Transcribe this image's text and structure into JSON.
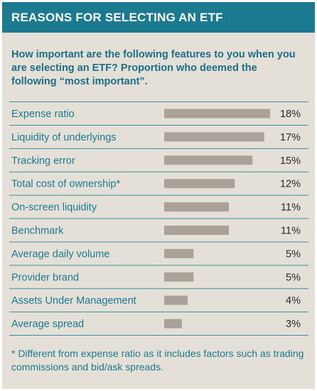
{
  "header": {
    "title": "REASONS FOR SELECTING AN ETF"
  },
  "question": "How important are the following features to you when you are selecting an ETF? Proportion who deemed the following “most important”.",
  "footnote": "* Different from expense ratio as it includes factors such as trading commissions and bid/ask spreads.",
  "colors": {
    "panel_background": "#e4e0d7",
    "header_background": "#1b7a8f",
    "bar": "#aaa199",
    "divider": "#3d8fa1",
    "label": "#1b7a8f"
  },
  "chart_data": {
    "type": "bar",
    "orientation": "horizontal",
    "title": "",
    "xlabel": "",
    "ylabel": "",
    "unit": "%",
    "xlim": [
      0,
      18
    ],
    "grid": false,
    "categories": [
      "Expense ratio",
      "Liquidity of underlyings",
      "Tracking error",
      "Total cost of ownership*",
      "On-screen liquidity",
      "Benchmark",
      "Average daily volume",
      "Provider brand",
      "Assets Under Management",
      "Average spread"
    ],
    "values": [
      18,
      17,
      15,
      12,
      11,
      11,
      5,
      5,
      4,
      3
    ],
    "value_labels": [
      "18%",
      "17%",
      "15%",
      "12%",
      "11%",
      "11%",
      "5%",
      "5%",
      "4%",
      "3%"
    ]
  }
}
